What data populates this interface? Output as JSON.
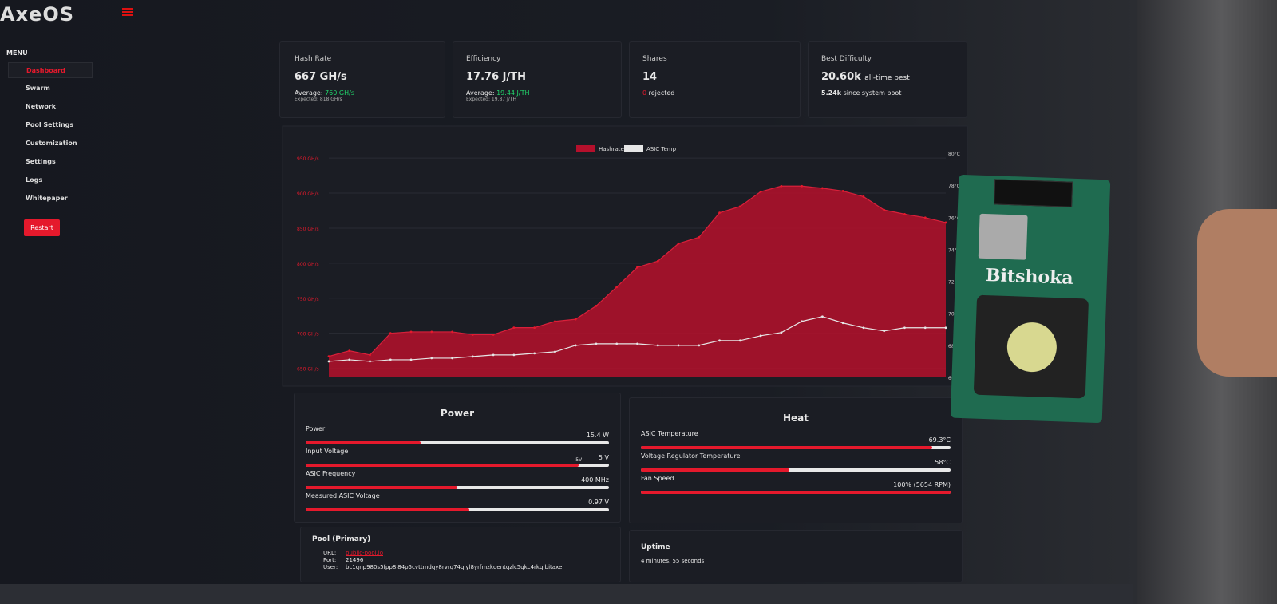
{
  "sidebar": {
    "logo": "AxeOS",
    "menu_label": "MENU",
    "items": [
      "Dashboard",
      "Swarm",
      "Network",
      "Pool Settings",
      "Customization",
      "Settings",
      "Logs",
      "Whitepaper"
    ],
    "restart": "Restart"
  },
  "stats": {
    "hashrate": {
      "title": "Hash Rate",
      "value": "667 GH/s",
      "avg_label": "Average:",
      "avg": "760 GH/s",
      "expected": "Expected: 818 GH/s"
    },
    "efficiency": {
      "title": "Efficiency",
      "value": "17.76 J/TH",
      "avg_label": "Average:",
      "avg": "19.44 J/TH",
      "expected": "Expected: 19.87 J/TH"
    },
    "shares": {
      "title": "Shares",
      "value": "14",
      "rejected_count": "0",
      "rejected_label": "rejected"
    },
    "difficulty": {
      "title": "Best Difficulty",
      "value": "20.60k",
      "value_note": "all-time best",
      "boot_value": "5.24k",
      "boot_note": "since system boot"
    }
  },
  "chart_data": {
    "type": "line",
    "grid": true,
    "ylim": [
      637,
      957
    ],
    "yticks": [
      {
        "value": 650,
        "label": "650 GH/s"
      },
      {
        "value": 700,
        "label": "700 GH/s"
      },
      {
        "value": 750,
        "label": "750 GH/s"
      },
      {
        "value": 800,
        "label": "800 GH/s"
      },
      {
        "value": 850,
        "label": "850 GH/s"
      },
      {
        "value": 900,
        "label": "900 GH/s"
      },
      {
        "value": 950,
        "label": "950 GH/s"
      }
    ],
    "y2lim": [
      66,
      80
    ],
    "y2ticks": [
      {
        "value": 66,
        "label": "66°C"
      },
      {
        "value": 68,
        "label": "68°C"
      },
      {
        "value": 70,
        "label": "70°C"
      },
      {
        "value": 72,
        "label": "72°C"
      },
      {
        "value": 74,
        "label": "74°C"
      },
      {
        "value": 76,
        "label": "76°C"
      },
      {
        "value": 78,
        "label": "78°C"
      },
      {
        "value": 80,
        "label": "80°C"
      }
    ],
    "series": [
      {
        "name": "Hashrate",
        "color": "#b5102c",
        "area": true,
        "values": [
          667,
          675,
          669,
          700,
          702,
          702,
          702,
          698,
          698,
          708,
          708,
          717,
          720,
          739,
          766,
          794,
          803,
          828,
          837,
          872,
          881,
          902,
          910,
          910,
          907,
          903,
          895,
          876,
          870,
          865,
          858
        ]
      },
      {
        "name": "ASIC Temp",
        "color": "#e6e6e6",
        "axis": "y2",
        "values": [
          67.0,
          67.1,
          67.0,
          67.1,
          67.1,
          67.2,
          67.2,
          67.3,
          67.4,
          67.4,
          67.5,
          67.6,
          68.0,
          68.1,
          68.1,
          68.1,
          68.0,
          68.0,
          68.0,
          68.3,
          68.3,
          68.6,
          68.8,
          69.5,
          69.8,
          69.4,
          69.1,
          68.9,
          69.1,
          69.1,
          69.1
        ]
      }
    ]
  },
  "power": {
    "title": "Power",
    "rows": [
      {
        "label": "Power",
        "value": "15.4 W"
      },
      {
        "label": "Input Voltage",
        "value": "5 V",
        "marker": "5V"
      },
      {
        "label": "ASIC Frequency",
        "value": "400 MHz"
      },
      {
        "label": "Measured ASIC Voltage",
        "value": "0.97 V"
      }
    ]
  },
  "heat": {
    "title": "Heat",
    "rows": [
      {
        "label": "ASIC Temperature",
        "value": "69.3°C"
      },
      {
        "label": "Voltage Regulator Temperature",
        "value": "58°C"
      },
      {
        "label": "Fan Speed",
        "value": "100% (5654 RPM)"
      }
    ]
  },
  "pool": {
    "title": "Pool (Primary)",
    "rows": [
      [
        "URL:",
        "public-pool.io"
      ],
      [
        "Port:",
        "21496"
      ],
      [
        "User:",
        "bc1qnp980s5fpp8l84p5cvttmdqy8rvrq74qlyl8yrfmzkdentqzlc5qkc4rkq.bitaxe"
      ]
    ]
  },
  "uptime": {
    "title": "Uptime",
    "value": "4 minutes, 55 seconds"
  },
  "device": {
    "label": "Bitshoka"
  }
}
